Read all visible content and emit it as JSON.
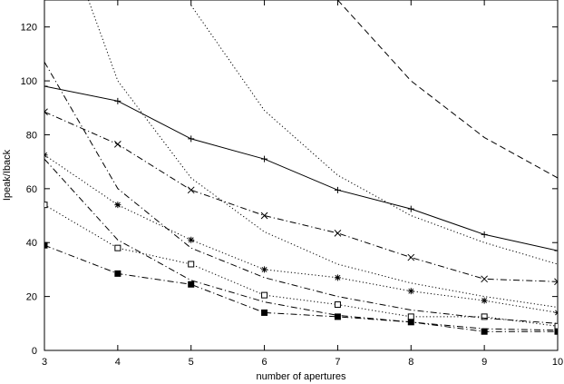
{
  "chart_data": {
    "type": "line",
    "title": "",
    "xlabel": "number of apertures",
    "ylabel": "Ipeak/Iback",
    "xlim": [
      3,
      10
    ],
    "ylim": [
      0,
      130
    ],
    "xticks": [
      3,
      4,
      5,
      6,
      7,
      8,
      9,
      10
    ],
    "yticks": [
      0,
      20,
      40,
      60,
      80,
      100,
      120
    ],
    "grid": false,
    "legend": "none",
    "series": [
      {
        "x": [
          3,
          4,
          5,
          6,
          7,
          8,
          9,
          10
        ],
        "y": [
          98,
          92.5,
          78.5,
          71,
          59.5,
          52.5,
          43,
          37
        ],
        "marker": "plus",
        "dash": "solid"
      },
      {
        "x": [
          3,
          4,
          5,
          6,
          7,
          8,
          9,
          10
        ],
        "y": [
          88.5,
          76.5,
          59.5,
          50,
          43.5,
          34.5,
          26.5,
          25.5
        ],
        "marker": "cross",
        "dash": "dashdot"
      },
      {
        "x": [
          3,
          4,
          5,
          6,
          7,
          8,
          9,
          10
        ],
        "y": [
          72.5,
          54,
          41,
          30,
          27,
          22,
          18.5,
          14
        ],
        "marker": "star",
        "dash": "dotted"
      },
      {
        "x": [
          3,
          4,
          5,
          6,
          7,
          8,
          9,
          10
        ],
        "y": [
          54,
          38,
          32,
          20.5,
          17,
          12.5,
          12.5,
          9
        ],
        "marker": "square-open",
        "dash": "dotted"
      },
      {
        "x": [
          3,
          4,
          5,
          6,
          7,
          8,
          9,
          10
        ],
        "y": [
          39,
          28.5,
          24.5,
          14,
          12.5,
          10.5,
          7,
          7
        ],
        "marker": "square-filled",
        "dash": "dashdot"
      },
      {
        "x": [
          3,
          4,
          5,
          6,
          7,
          8,
          9,
          10
        ],
        "y": [
          107,
          60,
          38,
          27,
          20,
          15,
          12,
          10
        ],
        "marker": "none",
        "dash": "dashdot"
      },
      {
        "x": [
          3,
          4,
          5,
          6,
          7,
          8,
          9,
          10
        ],
        "y": [
          71,
          41,
          26,
          18,
          13,
          10.5,
          8,
          7.5
        ],
        "marker": "none",
        "dash": "dashdot"
      },
      {
        "x": [
          3.6,
          4,
          5,
          6,
          7,
          8,
          9,
          10
        ],
        "y": [
          130,
          100,
          64,
          44,
          32,
          25,
          20,
          16
        ],
        "marker": "none",
        "dash": "dotted"
      },
      {
        "x": [
          5,
          6,
          7,
          8,
          9,
          10
        ],
        "y": [
          128,
          89,
          65,
          50,
          40,
          32
        ],
        "marker": "none",
        "dash": "dotted"
      },
      {
        "x": [
          7,
          8,
          9,
          10
        ],
        "y": [
          130,
          100,
          79,
          64
        ],
        "marker": "none",
        "dash": "dashed"
      }
    ]
  }
}
